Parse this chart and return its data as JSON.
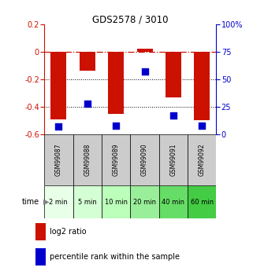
{
  "title": "GDS2578 / 3010",
  "samples": [
    "GSM99087",
    "GSM99088",
    "GSM99089",
    "GSM99090",
    "GSM99091",
    "GSM99092"
  ],
  "time_labels": [
    "2 min",
    "5 min",
    "10 min",
    "20 min",
    "40 min",
    "60 min"
  ],
  "log2_ratio": [
    -0.49,
    -0.14,
    -0.45,
    0.02,
    -0.33,
    -0.5
  ],
  "percentile_rank": [
    7,
    28,
    8,
    57,
    17,
    8
  ],
  "bar_color": "#cc1100",
  "dot_color": "#0000cc",
  "ylim_left": [
    -0.6,
    0.2
  ],
  "ylim_right": [
    0,
    100
  ],
  "yticks_left": [
    0.2,
    0.0,
    -0.2,
    -0.4,
    -0.6
  ],
  "yticks_right": [
    100,
    75,
    50,
    25,
    0
  ],
  "ytick_labels_left": [
    "0.2",
    "0",
    "-0.2",
    "-0.4",
    "-0.6"
  ],
  "ytick_labels_right": [
    "100%",
    "75",
    "50",
    "25",
    "0"
  ],
  "bar_width": 0.55,
  "dot_size": 28,
  "time_colors": [
    "#e8ffe8",
    "#d4ffd4",
    "#bbffbb",
    "#99ee99",
    "#66dd66",
    "#44cc44"
  ],
  "sample_bg_color": "#cccccc",
  "legend_items": [
    "log2 ratio",
    "percentile rank within the sample"
  ],
  "legend_colors": [
    "#cc1100",
    "#0000cc"
  ]
}
